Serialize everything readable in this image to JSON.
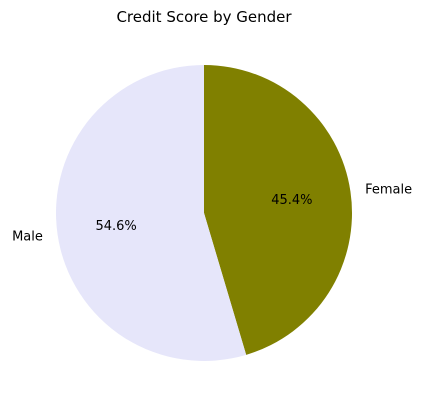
{
  "chart_data": {
    "type": "pie",
    "title": "Credit Score by Gender",
    "start_angle_deg": 90,
    "direction": "clockwise",
    "slices": [
      {
        "label": "Female",
        "value": 45.4,
        "pct_label": "45.4%",
        "color": "#808000"
      },
      {
        "label": "Male",
        "value": 54.6,
        "pct_label": "54.6%",
        "color": "#E6E6FA"
      }
    ]
  }
}
